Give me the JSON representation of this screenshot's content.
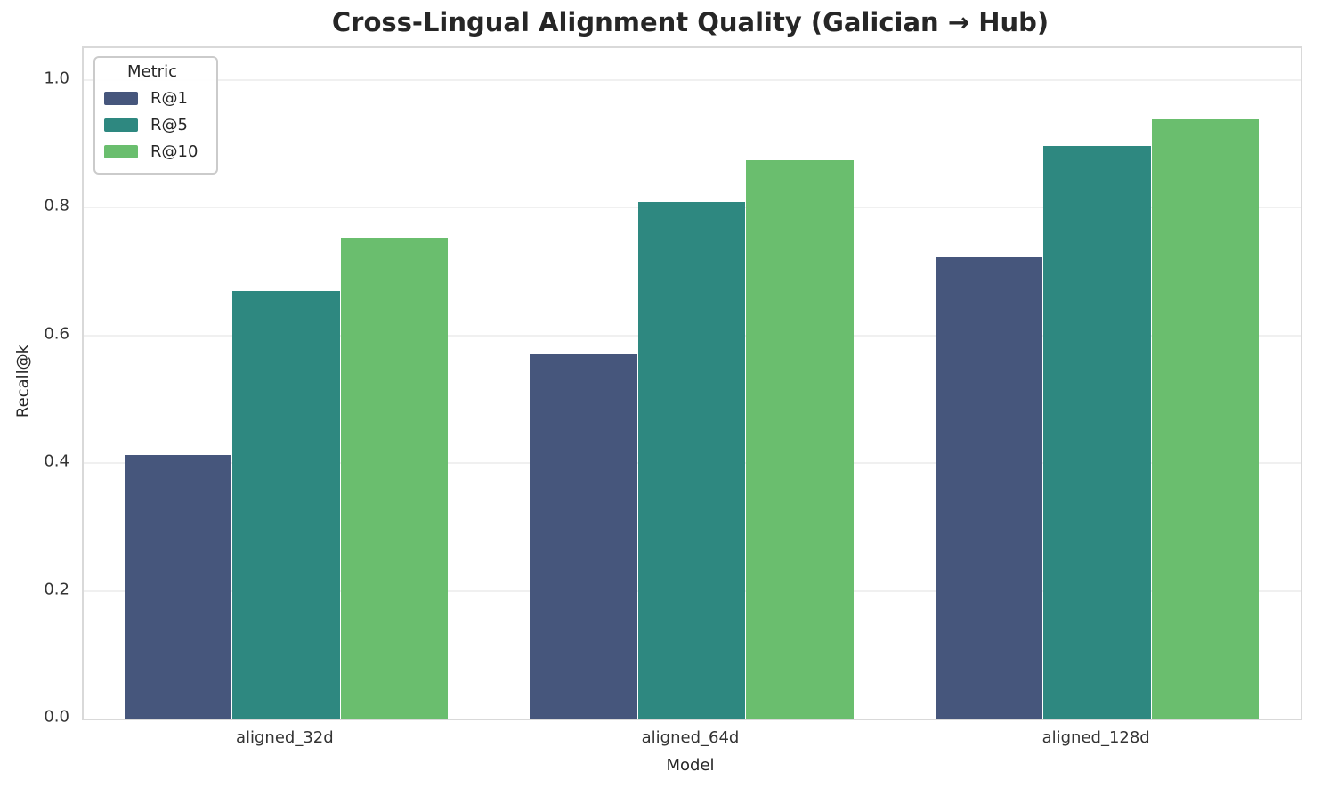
{
  "chart_data": {
    "type": "bar",
    "title": "Cross-Lingual Alignment Quality (Galician → Hub)",
    "xlabel": "Model",
    "ylabel": "Recall@k",
    "categories": [
      "aligned_32d",
      "aligned_64d",
      "aligned_128d"
    ],
    "series": [
      {
        "name": "R@1",
        "color": "#46567C",
        "values": [
          0.413,
          0.57,
          0.722
        ]
      },
      {
        "name": "R@5",
        "color": "#2E8880",
        "values": [
          0.669,
          0.809,
          0.897
        ]
      },
      {
        "name": "R@10",
        "color": "#6ABE6E",
        "values": [
          0.753,
          0.875,
          0.938
        ]
      }
    ],
    "ylim": [
      0,
      1.05
    ],
    "yticks": [
      0.0,
      0.2,
      0.4,
      0.6,
      0.8,
      1.0
    ],
    "ytick_labels": [
      "0.0",
      "0.2",
      "0.4",
      "0.6",
      "0.8",
      "1.0"
    ],
    "legend": {
      "title": "Metric",
      "position": "upper left"
    },
    "grid": "horizontal",
    "bar_group_fraction": 0.8
  },
  "style": {
    "background": "#ffffff",
    "spine_color": "#d9d9d9",
    "grid_color": "#f0f0f0",
    "text_color": "#262626"
  }
}
